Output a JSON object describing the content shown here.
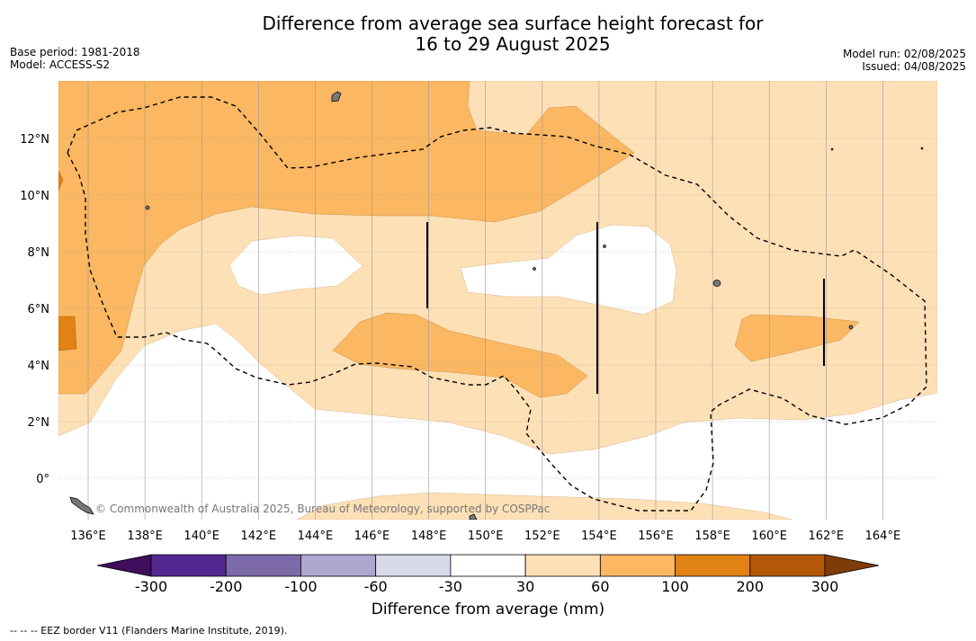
{
  "title": {
    "line1": "Difference from average sea surface height forecast for",
    "line2": "16 to 29 August 2025"
  },
  "meta_left": {
    "base_period": "Base period: 1981-2018",
    "model": "Model: ACCESS-S2"
  },
  "meta_right": {
    "model_run": "Model run: 02/08/2025",
    "issued": "Issued: 04/08/2025"
  },
  "map": {
    "lat_labels": [
      "12°N",
      "10°N",
      "8°N",
      "6°N",
      "4°N",
      "2°N",
      "0°"
    ],
    "lon_labels": [
      "136°E",
      "138°E",
      "140°E",
      "142°E",
      "144°E",
      "146°E",
      "148°E",
      "150°E",
      "152°E",
      "154°E",
      "156°E",
      "158°E",
      "160°E",
      "162°E",
      "164°E"
    ],
    "credit": "© Commonwealth of Australia 2025, Bureau of Meteorology, supported by COSPPac"
  },
  "colorbar": {
    "title": "Difference from average (mm)",
    "tick_labels": [
      "-300",
      "-200",
      "-100",
      "-60",
      "-30",
      "30",
      "60",
      "100",
      "200",
      "300"
    ],
    "colors": [
      "#3f0d5b",
      "#54278f",
      "#7d6ba9",
      "#aea7cf",
      "#d9d9ec",
      "#ffffff",
      "#fee0b6",
      "#fbb761",
      "#e08214",
      "#b35806",
      "#7f3b08"
    ]
  },
  "footnote": "--  --  -- EEZ border V11 (Flanders Marine Institute, 2019)."
}
